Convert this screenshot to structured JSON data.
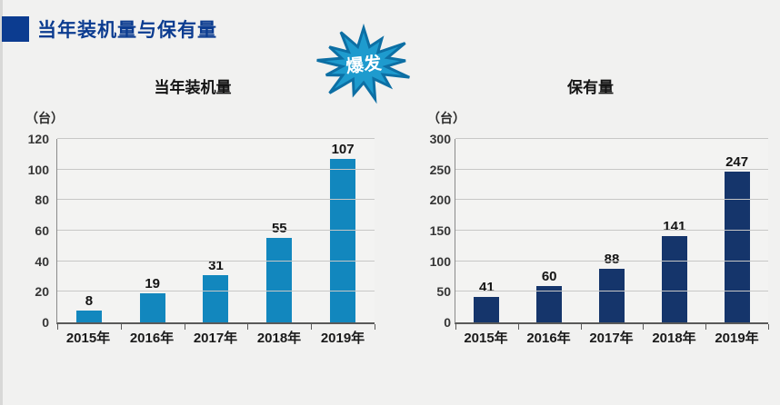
{
  "slide": {
    "background_color": "#F1F1F0",
    "edge_color": "#D8D8D7"
  },
  "header": {
    "title": "当年装机量与保有量",
    "text_color": "#0C3C90",
    "accent_color": "#0C3C90"
  },
  "burst": {
    "label": "爆发",
    "fill": "#1E9BCE",
    "stroke": "#0D6FA4",
    "text_color": "#FFFFFF"
  },
  "chart_data": [
    {
      "type": "bar",
      "title": "当年装机量",
      "unit_label": "（台）",
      "categories": [
        "2015年",
        "2016年",
        "2017年",
        "2018年",
        "2019年"
      ],
      "values": [
        8,
        19,
        31,
        55,
        107
      ],
      "ylim": [
        0,
        120
      ],
      "yticks": [
        0,
        20,
        40,
        60,
        80,
        100,
        120
      ],
      "bar_color": "#1287BE",
      "grid": true,
      "legend": "none",
      "value_labels": true
    },
    {
      "type": "bar",
      "title": "保有量",
      "unit_label": "（台）",
      "categories": [
        "2015年",
        "2016年",
        "2017年",
        "2018年",
        "2019年"
      ],
      "values": [
        41,
        60,
        88,
        141,
        247
      ],
      "ylim": [
        0,
        300
      ],
      "yticks": [
        0,
        50,
        100,
        150,
        200,
        250,
        300
      ],
      "bar_color": "#15356B",
      "grid": true,
      "legend": "none",
      "value_labels": true
    }
  ]
}
